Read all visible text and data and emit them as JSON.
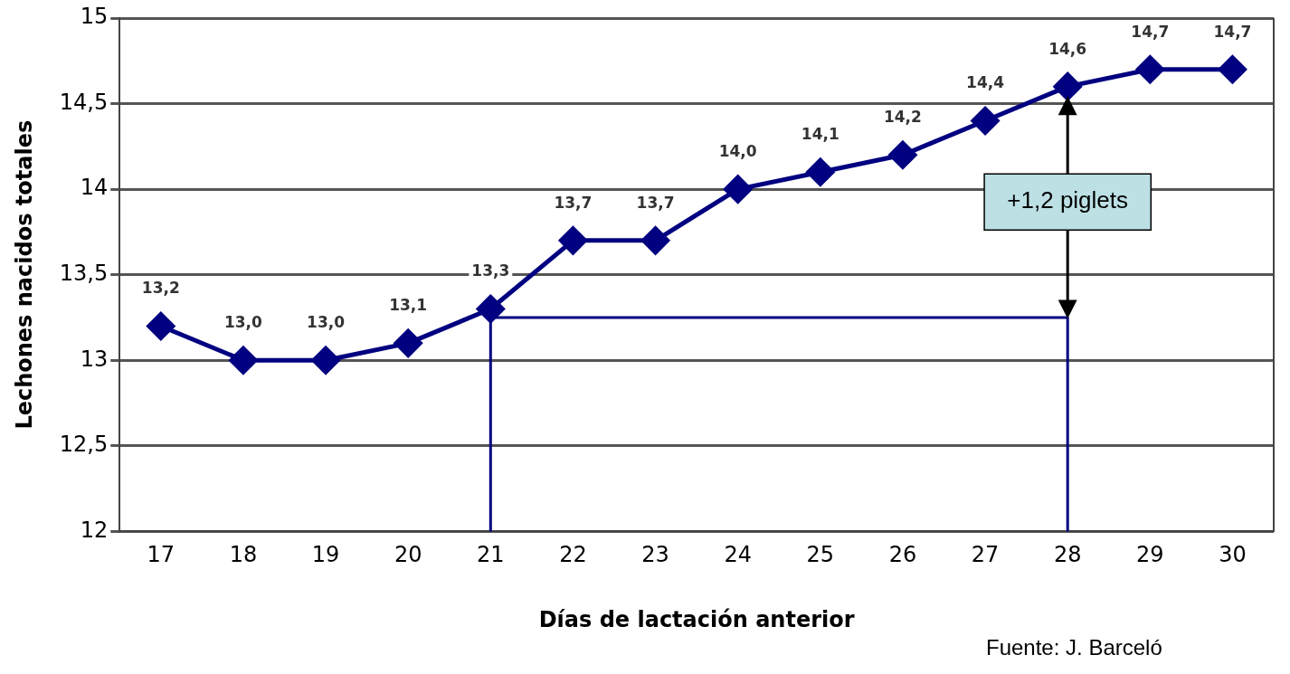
{
  "chart_data": {
    "type": "line",
    "xlabel": "Días de lactación anterior",
    "ylabel": "Lechones nacidos totales",
    "categories": [
      "17",
      "18",
      "19",
      "20",
      "21",
      "22",
      "23",
      "24",
      "25",
      "26",
      "27",
      "28",
      "29",
      "30"
    ],
    "series": [
      {
        "color": "#000080",
        "values": [
          13.2,
          13.0,
          13.0,
          13.1,
          13.3,
          13.7,
          13.7,
          14.0,
          14.1,
          14.2,
          14.4,
          14.6,
          14.7,
          14.7
        ],
        "value_labels": [
          "13,2",
          "13,0",
          "13,0",
          "13,1",
          "13,3",
          "13,7",
          "13,7",
          "14,0",
          "14,1",
          "14,2",
          "14,4",
          "14,6",
          "14,7",
          "14,7"
        ]
      },
      {
        "type": "line",
        "color": "#000080",
        "marker": "none",
        "x": [
          "21",
          "21",
          "28",
          "28"
        ],
        "values": [
          12,
          13.25,
          13.25,
          12
        ]
      }
    ],
    "ylim": [
      12,
      15
    ],
    "yticks": [
      12,
      {
        "value": 12.5,
        "label": "12,5"
      },
      13,
      {
        "value": 13.5,
        "label": "13,5"
      },
      14,
      {
        "value": 14.5,
        "label": "14,5"
      },
      15
    ],
    "grid": "y",
    "legend": false,
    "marker": "diamond",
    "line_style": "solid",
    "annotations": [
      "+1,2 piglets",
      "Fuente: J. Barceló"
    ]
  }
}
